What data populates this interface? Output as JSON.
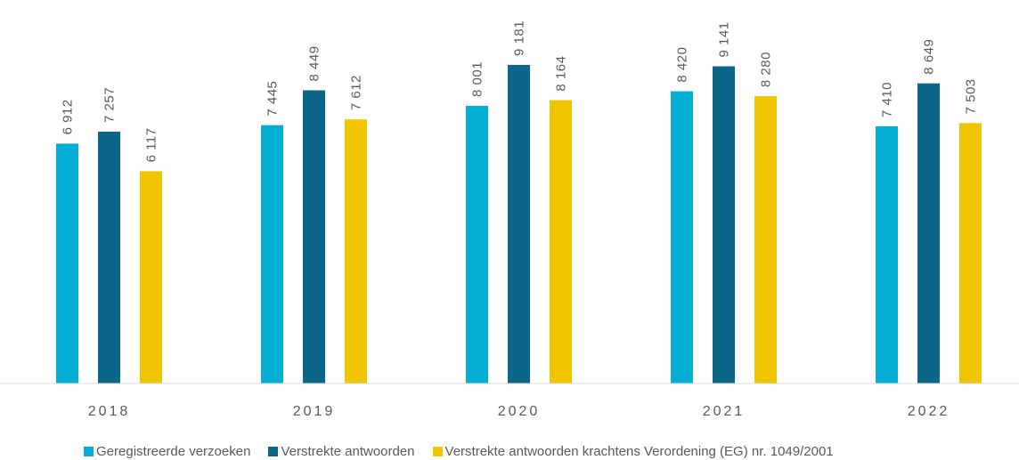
{
  "chart_data": {
    "type": "bar",
    "title": "",
    "xlabel": "",
    "ylabel": "",
    "categories": [
      "2018",
      "2019",
      "2020",
      "2021",
      "2022"
    ],
    "ylim": [
      0,
      10000
    ],
    "grid": false,
    "legend_position": "bottom",
    "series": [
      {
        "name": "Geregistreerde verzoeken",
        "color": "#05AED5",
        "values": [
          6912,
          7445,
          8001,
          8420,
          7410
        ],
        "labels": [
          "6 912",
          "7 445",
          "8 001",
          "8 420",
          "7 410"
        ]
      },
      {
        "name": "Verstrekte antwoorden",
        "color": "#0B6687",
        "values": [
          7257,
          8449,
          9181,
          9141,
          8649
        ],
        "labels": [
          "7 257",
          "8 449",
          "9 181",
          "9 141",
          "8 649"
        ]
      },
      {
        "name": "Verstrekte antwoorden krachtens Verordening (EG) nr. 1049/2001",
        "color": "#F1C500",
        "values": [
          6117,
          7612,
          8164,
          8280,
          7503
        ],
        "labels": [
          "6 117",
          "7 612",
          "8 164",
          "8 280",
          "7 503"
        ]
      }
    ]
  }
}
